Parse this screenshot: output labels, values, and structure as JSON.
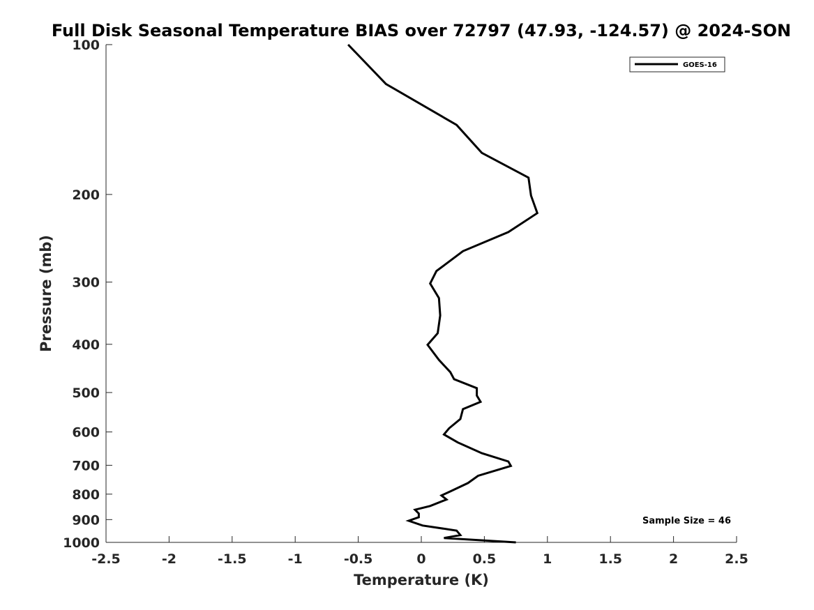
{
  "chart_data": {
    "type": "line",
    "title": "Full Disk Seasonal Temperature BIAS over 72797 (47.93, -124.57) @ 2024-SON",
    "xlabel": "Temperature (K)",
    "ylabel": "Pressure (mb)",
    "xlim": [
      -2.5,
      2.5
    ],
    "ylim": [
      100,
      1000
    ],
    "y_scale": "log",
    "y_reversed": true,
    "grid": false,
    "legend_position": "top-right",
    "x_ticks": [
      {
        "value": -2.5,
        "label": "-2.5"
      },
      {
        "value": -2,
        "label": "-2"
      },
      {
        "value": -1.5,
        "label": "-1.5"
      },
      {
        "value": -1,
        "label": "-1"
      },
      {
        "value": -0.5,
        "label": "-0.5"
      },
      {
        "value": 0,
        "label": "0"
      },
      {
        "value": 0.5,
        "label": "0.5"
      },
      {
        "value": 1,
        "label": "1"
      },
      {
        "value": 1.5,
        "label": "1.5"
      },
      {
        "value": 2,
        "label": "2"
      },
      {
        "value": 2.5,
        "label": "2.5"
      }
    ],
    "y_ticks": [
      {
        "value": 100,
        "label": "100"
      },
      {
        "value": 200,
        "label": "200"
      },
      {
        "value": 300,
        "label": "300"
      },
      {
        "value": 400,
        "label": "400"
      },
      {
        "value": 500,
        "label": "500"
      },
      {
        "value": 600,
        "label": "600"
      },
      {
        "value": 700,
        "label": "700"
      },
      {
        "value": 800,
        "label": "800"
      },
      {
        "value": 900,
        "label": "900"
      },
      {
        "value": 1000,
        "label": "1000"
      }
    ],
    "series": [
      {
        "name": "GOES-16",
        "color": "#000000",
        "points": [
          {
            "x": -0.58,
            "y": 100
          },
          {
            "x": -0.28,
            "y": 120
          },
          {
            "x": 0.28,
            "y": 145
          },
          {
            "x": 0.48,
            "y": 165
          },
          {
            "x": 0.85,
            "y": 185
          },
          {
            "x": 0.87,
            "y": 201
          },
          {
            "x": 0.92,
            "y": 218
          },
          {
            "x": 0.69,
            "y": 238
          },
          {
            "x": 0.33,
            "y": 260
          },
          {
            "x": 0.12,
            "y": 285
          },
          {
            "x": 0.07,
            "y": 302
          },
          {
            "x": 0.14,
            "y": 323
          },
          {
            "x": 0.15,
            "y": 350
          },
          {
            "x": 0.13,
            "y": 380
          },
          {
            "x": 0.05,
            "y": 401
          },
          {
            "x": 0.14,
            "y": 430
          },
          {
            "x": 0.23,
            "y": 455
          },
          {
            "x": 0.26,
            "y": 470
          },
          {
            "x": 0.44,
            "y": 490
          },
          {
            "x": 0.44,
            "y": 507
          },
          {
            "x": 0.47,
            "y": 522
          },
          {
            "x": 0.33,
            "y": 540
          },
          {
            "x": 0.31,
            "y": 565
          },
          {
            "x": 0.22,
            "y": 590
          },
          {
            "x": 0.18,
            "y": 607
          },
          {
            "x": 0.29,
            "y": 630
          },
          {
            "x": 0.48,
            "y": 662
          },
          {
            "x": 0.69,
            "y": 688
          },
          {
            "x": 0.71,
            "y": 702
          },
          {
            "x": 0.45,
            "y": 735
          },
          {
            "x": 0.37,
            "y": 760
          },
          {
            "x": 0.23,
            "y": 790
          },
          {
            "x": 0.16,
            "y": 805
          },
          {
            "x": 0.2,
            "y": 820
          },
          {
            "x": 0.07,
            "y": 845
          },
          {
            "x": -0.05,
            "y": 860
          },
          {
            "x": -0.02,
            "y": 875
          },
          {
            "x": -0.02,
            "y": 890
          },
          {
            "x": -0.1,
            "y": 905
          },
          {
            "x": 0.01,
            "y": 925
          },
          {
            "x": 0.28,
            "y": 947
          },
          {
            "x": 0.31,
            "y": 967
          },
          {
            "x": 0.18,
            "y": 980
          },
          {
            "x": 0.75,
            "y": 1000
          }
        ]
      }
    ],
    "annotations": [
      "Sample Size = 46"
    ]
  }
}
